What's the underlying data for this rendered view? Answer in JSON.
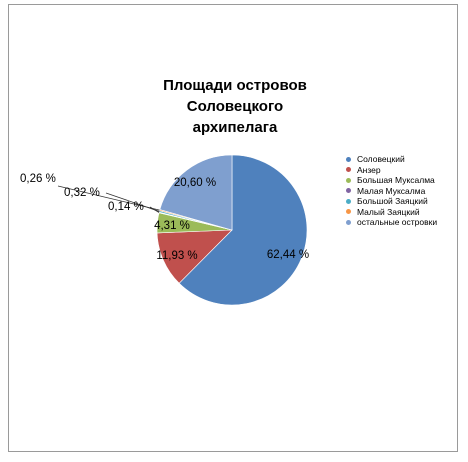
{
  "chart_data": {
    "type": "pie",
    "title_lines": [
      "Площади островов",
      "Соловецкого",
      "архипелага"
    ],
    "slices": [
      {
        "name": "Соловецкий",
        "value": 62.44,
        "label": "62,44 %",
        "color": "#4f81bd"
      },
      {
        "name": "Анзер",
        "value": 11.93,
        "label": "11,93 %",
        "color": "#c0504d"
      },
      {
        "name": "Большая Муксалма",
        "value": 4.31,
        "label": "4,31 %",
        "color": "#9bbb59"
      },
      {
        "name": "Малая Муксалма",
        "value": 0.14,
        "label": "0,14 %",
        "color": "#8064a2"
      },
      {
        "name": "Большой Заяцкий",
        "value": 0.32,
        "label": "0,32 %",
        "color": "#4bacc6"
      },
      {
        "name": "Малый Заяцкий",
        "value": 0.26,
        "label": "0,26 %",
        "color": "#f79646"
      },
      {
        "name": "остальные островки",
        "value": 20.6,
        "label": "20,60 %",
        "color": "#7f9fcf"
      }
    ],
    "legend_position": "right"
  }
}
